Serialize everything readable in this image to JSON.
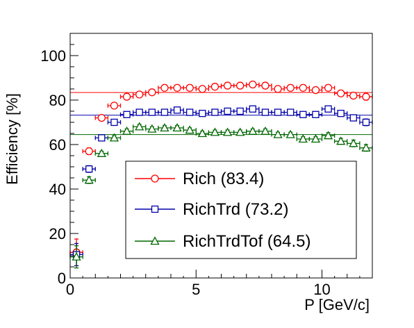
{
  "chart_data": {
    "type": "scatter",
    "xlabel": "P [GeV/c]",
    "ylabel": "Efficiency [%]",
    "xlim": [
      0,
      12
    ],
    "ylim": [
      0,
      110
    ],
    "xticks": [
      0,
      5,
      10
    ],
    "yticks": [
      0,
      20,
      40,
      60,
      80,
      100
    ],
    "grid": false,
    "legend_position": "bottom-right",
    "series": [
      {
        "name": "Rich (83.4)",
        "color": "#ff0000",
        "marker": "circle",
        "fit": 83.4,
        "x": [
          0.25,
          0.75,
          1.25,
          1.75,
          2.25,
          2.75,
          3.25,
          3.75,
          4.25,
          4.75,
          5.25,
          5.75,
          6.25,
          6.75,
          7.25,
          7.75,
          8.25,
          8.75,
          9.25,
          9.75,
          10.25,
          10.75,
          11.25,
          11.75
        ],
        "y": [
          11.5,
          57,
          72,
          77.5,
          81.5,
          82.5,
          83.5,
          85.5,
          85.5,
          85.5,
          85,
          86,
          86.5,
          86.5,
          87,
          86.5,
          85,
          85.5,
          85.5,
          84.5,
          85.5,
          83,
          82,
          81.5
        ],
        "yerr": [
          6,
          1.5,
          1,
          1,
          1,
          1,
          1,
          1,
          1,
          1,
          1,
          1,
          1,
          1,
          1,
          1,
          1,
          1,
          1,
          1,
          1,
          1,
          1.2,
          1.5
        ]
      },
      {
        "name": "RichTrd (73.2)",
        "color": "#0000aa",
        "marker": "square",
        "fit": 73.2,
        "x": [
          0.25,
          0.75,
          1.25,
          1.75,
          2.25,
          2.75,
          3.25,
          3.75,
          4.25,
          4.75,
          5.25,
          5.75,
          6.25,
          6.75,
          7.25,
          7.75,
          8.25,
          8.75,
          9.25,
          9.75,
          10.25,
          10.75,
          11.25,
          11.75
        ],
        "y": [
          10.5,
          49,
          63,
          70,
          73.5,
          74.5,
          74.5,
          74.5,
          75.5,
          74.5,
          74,
          74.5,
          75,
          75,
          76,
          74.5,
          74.5,
          74.5,
          73.5,
          73.5,
          76,
          74,
          72,
          70
        ],
        "yerr": [
          5,
          1.5,
          1,
          1,
          1,
          1,
          1,
          1,
          1,
          1,
          1,
          1,
          1,
          1,
          1,
          1,
          1,
          1,
          1,
          1,
          1.2,
          1.2,
          1.3,
          1.5
        ]
      },
      {
        "name": "RichTrdTof (64.5)",
        "color": "#006600",
        "marker": "triangle",
        "fit": 64.5,
        "x": [
          0.25,
          0.75,
          1.25,
          1.75,
          2.25,
          2.75,
          3.25,
          3.75,
          4.25,
          4.75,
          5.25,
          5.75,
          6.25,
          6.75,
          7.25,
          7.75,
          8.25,
          8.75,
          9.25,
          9.75,
          10.25,
          10.75,
          11.25,
          11.75
        ],
        "y": [
          9.5,
          44,
          56,
          63,
          66,
          68,
          67,
          67.5,
          67.5,
          66.5,
          65,
          65.5,
          65.5,
          65.5,
          66,
          66,
          64.5,
          64.5,
          62.5,
          62.5,
          64,
          61.5,
          60.5,
          58.5
        ],
        "yerr": [
          5,
          1.5,
          1,
          1,
          1,
          1,
          1,
          1,
          1,
          1,
          1,
          1,
          1,
          1,
          1,
          1,
          1,
          1,
          1,
          1,
          1.3,
          1.3,
          1.5,
          1.5
        ]
      }
    ]
  }
}
